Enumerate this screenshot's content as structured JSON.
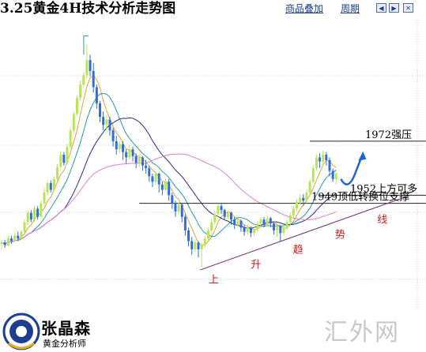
{
  "header": {
    "title": "3.25黄金4H技术分析走势图",
    "overlay_link": "商品叠加",
    "period_link": "周期",
    "nav_icons": [
      "arrow-left-icon",
      "arrow-right-icon",
      "close-icon"
    ]
  },
  "chart_data": {
    "type": "candlestick",
    "title": "3.25黄金4H技术分析走势图",
    "xlabel": "",
    "ylabel": "",
    "grid": true,
    "y_range": [
      1915,
      2012
    ],
    "candles": [
      [
        1934.0,
        1934.5,
        1932.0,
        1935.5
      ],
      [
        1934.5,
        1933.5,
        1932.5,
        1935.5
      ],
      [
        1933.5,
        1936.0,
        1933.0,
        1937.0
      ],
      [
        1936.0,
        1935.0,
        1934.0,
        1937.0
      ],
      [
        1935.0,
        1937.0,
        1934.5,
        1938.0
      ],
      [
        1937.0,
        1936.0,
        1935.0,
        1938.5
      ],
      [
        1936.0,
        1938.5,
        1935.5,
        1939.0
      ],
      [
        1938.5,
        1942.0,
        1938.0,
        1943.0
      ],
      [
        1942.0,
        1945.5,
        1941.0,
        1946.5
      ],
      [
        1945.5,
        1943.0,
        1942.0,
        1946.5
      ],
      [
        1943.0,
        1947.0,
        1942.0,
        1948.0
      ],
      [
        1947.0,
        1944.0,
        1943.0,
        1948.0
      ],
      [
        1944.0,
        1949.0,
        1943.5,
        1950.0
      ],
      [
        1949.0,
        1953.0,
        1948.0,
        1954.5
      ],
      [
        1953.0,
        1956.5,
        1952.0,
        1957.5
      ],
      [
        1956.5,
        1954.0,
        1953.0,
        1957.5
      ],
      [
        1954.0,
        1958.0,
        1953.5,
        1959.0
      ],
      [
        1958.0,
        1962.5,
        1957.0,
        1963.5
      ],
      [
        1962.5,
        1967.0,
        1961.5,
        1968.0
      ],
      [
        1967.0,
        1964.0,
        1963.0,
        1968.0
      ],
      [
        1964.0,
        1970.0,
        1963.5,
        1971.0
      ],
      [
        1970.0,
        1976.0,
        1969.0,
        1977.0
      ],
      [
        1976.0,
        1982.0,
        1975.0,
        1983.0
      ],
      [
        1982.0,
        1988.0,
        1981.5,
        1989.0
      ],
      [
        1988.0,
        1993.0,
        1987.0,
        1994.5
      ],
      [
        1993.0,
        1996.5,
        1992.0,
        1997.5
      ],
      [
        1996.5,
        2002.0,
        1995.0,
        2008.0
      ],
      [
        2002.0,
        1998.0,
        1996.0,
        2004.0
      ],
      [
        1998.0,
        1992.0,
        1990.0,
        2001.0
      ],
      [
        1992.0,
        1986.0,
        1984.0,
        1993.0
      ],
      [
        1986.0,
        1981.0,
        1979.0,
        1987.0
      ],
      [
        1981.0,
        1978.0,
        1976.0,
        1983.0
      ],
      [
        1978.0,
        1980.0,
        1975.5,
        1981.5
      ],
      [
        1980.0,
        1976.0,
        1974.0,
        1981.0
      ],
      [
        1976.0,
        1972.0,
        1970.0,
        1977.0
      ],
      [
        1972.0,
        1969.0,
        1967.0,
        1974.0
      ],
      [
        1969.0,
        1971.0,
        1967.5,
        1972.0
      ],
      [
        1971.0,
        1968.0,
        1965.0,
        1972.0
      ],
      [
        1968.0,
        1966.0,
        1963.5,
        1969.0
      ],
      [
        1966.0,
        1969.0,
        1965.0,
        1970.5
      ],
      [
        1969.0,
        1966.5,
        1964.5,
        1970.0
      ],
      [
        1966.5,
        1964.0,
        1962.0,
        1967.5
      ],
      [
        1964.0,
        1966.0,
        1962.5,
        1967.0
      ],
      [
        1966.0,
        1963.0,
        1961.0,
        1966.5
      ],
      [
        1963.0,
        1962.0,
        1960.0,
        1965.0
      ],
      [
        1962.0,
        1959.0,
        1957.0,
        1963.0
      ],
      [
        1959.0,
        1957.0,
        1955.0,
        1960.0
      ],
      [
        1957.0,
        1960.0,
        1956.0,
        1961.0
      ],
      [
        1960.0,
        1956.0,
        1953.0,
        1960.5
      ],
      [
        1956.0,
        1954.0,
        1952.0,
        1957.0
      ],
      [
        1954.0,
        1957.0,
        1953.5,
        1958.0
      ],
      [
        1957.0,
        1952.0,
        1950.0,
        1958.0
      ],
      [
        1952.0,
        1949.0,
        1947.0,
        1953.0
      ],
      [
        1949.0,
        1946.0,
        1944.0,
        1950.0
      ],
      [
        1946.0,
        1948.5,
        1945.0,
        1949.5
      ],
      [
        1948.5,
        1944.0,
        1942.0,
        1949.0
      ],
      [
        1944.0,
        1939.0,
        1937.0,
        1945.0
      ],
      [
        1939.0,
        1935.0,
        1933.0,
        1940.0
      ],
      [
        1935.0,
        1932.0,
        1930.0,
        1936.5
      ],
      [
        1932.0,
        1934.5,
        1931.0,
        1935.5
      ],
      [
        1934.5,
        1932.0,
        1929.0,
        1935.0
      ],
      [
        1932.0,
        1933.5,
        1925.5,
        1934.5
      ],
      [
        1933.5,
        1936.0,
        1932.5,
        1937.0
      ],
      [
        1936.0,
        1939.0,
        1935.0,
        1940.0
      ],
      [
        1939.0,
        1942.0,
        1938.0,
        1943.5
      ],
      [
        1942.0,
        1945.0,
        1941.0,
        1946.0
      ],
      [
        1945.0,
        1948.0,
        1944.0,
        1949.0
      ],
      [
        1948.0,
        1946.5,
        1945.0,
        1949.0
      ],
      [
        1946.5,
        1944.0,
        1943.0,
        1947.0
      ],
      [
        1944.0,
        1945.5,
        1943.0,
        1946.5
      ],
      [
        1945.5,
        1943.0,
        1941.0,
        1946.0
      ],
      [
        1943.0,
        1941.0,
        1939.5,
        1944.0
      ],
      [
        1941.0,
        1942.5,
        1940.0,
        1943.5
      ],
      [
        1942.5,
        1940.0,
        1938.5,
        1943.0
      ],
      [
        1940.0,
        1938.5,
        1937.0,
        1941.0
      ],
      [
        1938.5,
        1940.0,
        1937.5,
        1941.0
      ],
      [
        1940.0,
        1938.0,
        1936.5,
        1940.5
      ],
      [
        1938.0,
        1939.5,
        1937.0,
        1940.5
      ],
      [
        1939.5,
        1941.5,
        1938.5,
        1942.5
      ],
      [
        1941.5,
        1943.0,
        1940.5,
        1944.0
      ],
      [
        1943.0,
        1941.0,
        1940.0,
        1944.0
      ],
      [
        1941.0,
        1943.5,
        1940.5,
        1944.5
      ],
      [
        1943.5,
        1941.5,
        1940.0,
        1944.0
      ],
      [
        1941.5,
        1939.0,
        1937.5,
        1942.0
      ],
      [
        1939.0,
        1940.5,
        1936.5,
        1941.5
      ],
      [
        1940.5,
        1938.0,
        1935.0,
        1941.0
      ],
      [
        1938.0,
        1940.0,
        1937.0,
        1941.0
      ],
      [
        1940.0,
        1942.0,
        1939.0,
        1943.0
      ],
      [
        1942.0,
        1944.5,
        1941.0,
        1945.5
      ],
      [
        1944.5,
        1947.0,
        1943.5,
        1948.0
      ],
      [
        1947.0,
        1949.5,
        1946.0,
        1950.5
      ],
      [
        1949.5,
        1951.0,
        1948.5,
        1952.5
      ],
      [
        1951.0,
        1950.0,
        1948.0,
        1952.5
      ],
      [
        1950.0,
        1953.0,
        1949.0,
        1954.0
      ],
      [
        1953.0,
        1957.0,
        1952.0,
        1958.0
      ],
      [
        1957.0,
        1962.0,
        1956.5,
        1963.0
      ],
      [
        1962.0,
        1966.0,
        1961.0,
        1967.0
      ],
      [
        1966.0,
        1964.5,
        1962.0,
        1967.5
      ],
      [
        1964.5,
        1967.0,
        1963.5,
        1968.5
      ],
      [
        1967.0,
        1965.0,
        1963.0,
        1968.0
      ],
      [
        1965.0,
        1961.0,
        1959.0,
        1966.0
      ],
      [
        1961.0,
        1958.0,
        1957.0,
        1962.0
      ],
      [
        1958.0,
        1960.0,
        1956.0,
        1961.0
      ]
    ],
    "projection": [
      [
        1958.0,
        0
      ],
      [
        1955.5,
        1
      ],
      [
        1960.0,
        2
      ],
      [
        1966.5,
        3
      ]
    ],
    "annotations": [
      {
        "text": "1972强压",
        "price": 1972
      },
      {
        "text": "1952上方可多",
        "price": 1952
      },
      {
        "text": "1949顶低转换位支撑",
        "price": 1949
      }
    ],
    "trendline_label": [
      "上",
      "升",
      "趋",
      "势",
      "线"
    ]
  },
  "logo": {
    "name": "张晶森",
    "subtitle": "黄金分析师"
  },
  "watermark": "汇外网",
  "colors": {
    "bullish": "#b9e45a",
    "bearish": "#2f6ed8",
    "ma_fast": "#e6a23c",
    "ma_mid": "#2a9ba0",
    "ma_slow": "#2b2d8f",
    "ma_long": "#e07fd6",
    "trend": "#6b2e74",
    "label_red": "#d11a1a",
    "projection": "#1e64d8"
  }
}
